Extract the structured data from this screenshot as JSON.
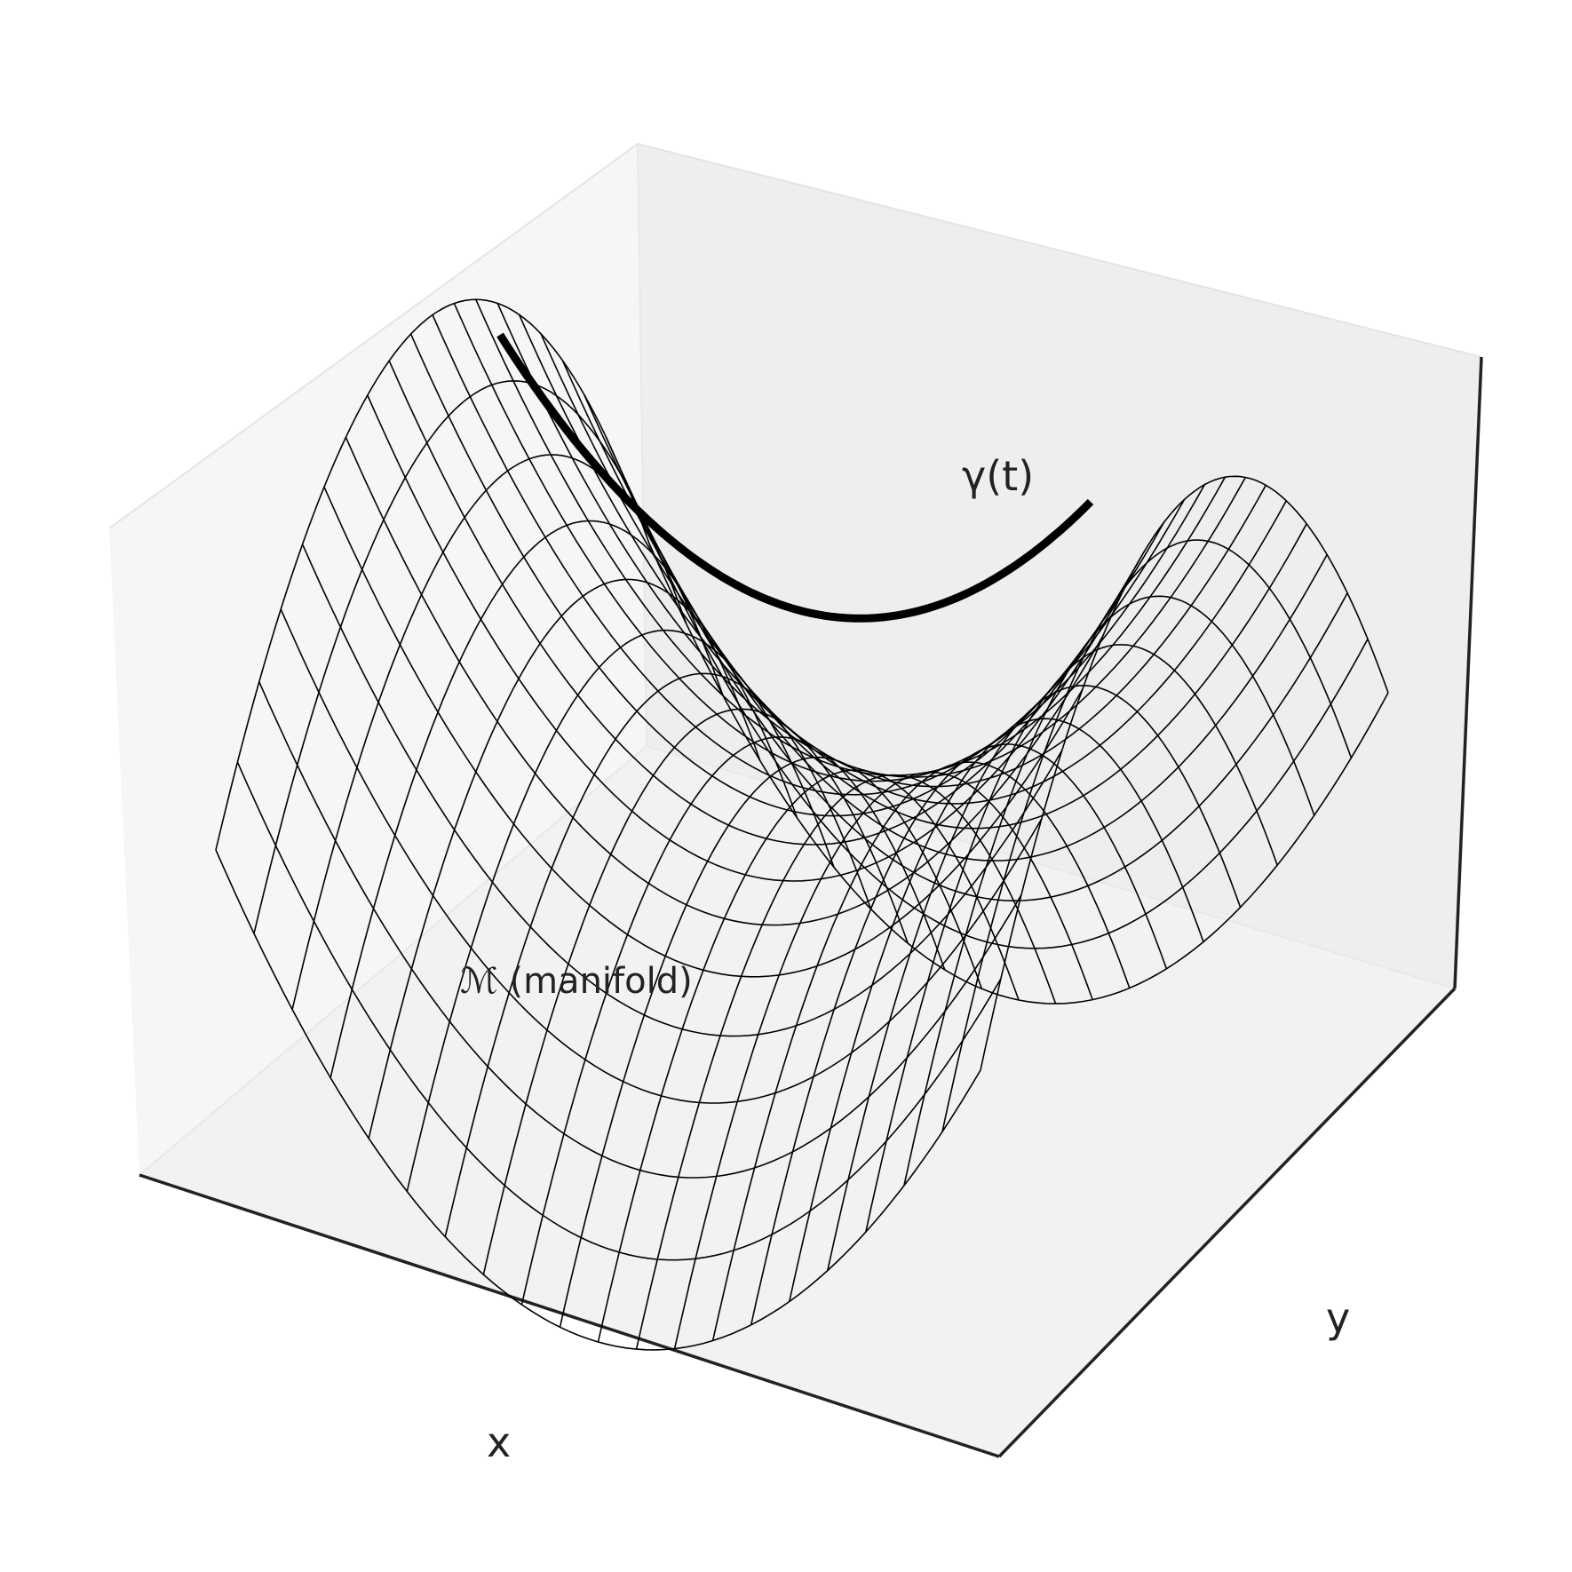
{
  "figure": {
    "curve_label": "γ(t)",
    "surface_label": "ℳ (manifold)",
    "xlabel": "x",
    "ylabel": "y"
  },
  "chart_data": {
    "type": "surface",
    "surface": "saddle (wireframe)",
    "curve": "geodesic curve on the surface",
    "colors": {
      "wire": "#000000",
      "curve": "#000000",
      "pane_left": "#f6f6f6",
      "pane_back": "#eeeeee",
      "pane_floor": "#f2f2f2",
      "axis": "#222222"
    }
  }
}
